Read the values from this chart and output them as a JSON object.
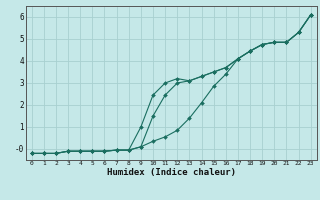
{
  "title": "",
  "xlabel": "Humidex (Indice chaleur)",
  "ylabel": "",
  "background_color": "#c5e8e8",
  "grid_color": "#a8d0d0",
  "line_color": "#1a6e60",
  "xlim": [
    -0.5,
    23.5
  ],
  "ylim": [
    -0.5,
    6.5
  ],
  "xticks": [
    0,
    1,
    2,
    3,
    4,
    5,
    6,
    7,
    8,
    9,
    10,
    11,
    12,
    13,
    14,
    15,
    16,
    17,
    18,
    19,
    20,
    21,
    22,
    23
  ],
  "yticks": [
    0,
    1,
    2,
    3,
    4,
    5,
    6
  ],
  "ytick_labels": [
    "-0",
    "1",
    "2",
    "3",
    "4",
    "5",
    "6"
  ],
  "line1_x": [
    0,
    1,
    2,
    3,
    4,
    5,
    6,
    7,
    8,
    9,
    10,
    11,
    12,
    13,
    14,
    15,
    16,
    17,
    18,
    19,
    20,
    21,
    22,
    23
  ],
  "line1_y": [
    -0.2,
    -0.2,
    -0.2,
    -0.1,
    -0.1,
    -0.1,
    -0.1,
    -0.05,
    -0.05,
    1.0,
    2.45,
    3.0,
    3.2,
    3.1,
    3.3,
    3.5,
    3.7,
    4.1,
    4.45,
    4.75,
    4.85,
    4.85,
    5.3,
    6.1
  ],
  "line2_x": [
    0,
    1,
    2,
    3,
    4,
    5,
    6,
    7,
    8,
    9,
    10,
    11,
    12,
    13,
    14,
    15,
    16,
    17,
    18,
    19,
    20,
    21,
    22,
    23
  ],
  "line2_y": [
    -0.2,
    -0.2,
    -0.2,
    -0.1,
    -0.1,
    -0.1,
    -0.1,
    -0.05,
    -0.05,
    0.1,
    0.35,
    0.55,
    0.85,
    1.4,
    2.1,
    2.85,
    3.4,
    4.1,
    4.45,
    4.75,
    4.85,
    4.85,
    5.3,
    6.1
  ],
  "line3_x": [
    0,
    1,
    2,
    3,
    4,
    5,
    6,
    7,
    8,
    9,
    10,
    11,
    12,
    13,
    14,
    15,
    16,
    17,
    18,
    19,
    20,
    21,
    22,
    23
  ],
  "line3_y": [
    -0.2,
    -0.2,
    -0.2,
    -0.1,
    -0.1,
    -0.1,
    -0.1,
    -0.05,
    -0.05,
    0.1,
    1.5,
    2.45,
    3.0,
    3.1,
    3.3,
    3.5,
    3.7,
    4.1,
    4.45,
    4.75,
    4.85,
    4.85,
    5.3,
    6.1
  ]
}
